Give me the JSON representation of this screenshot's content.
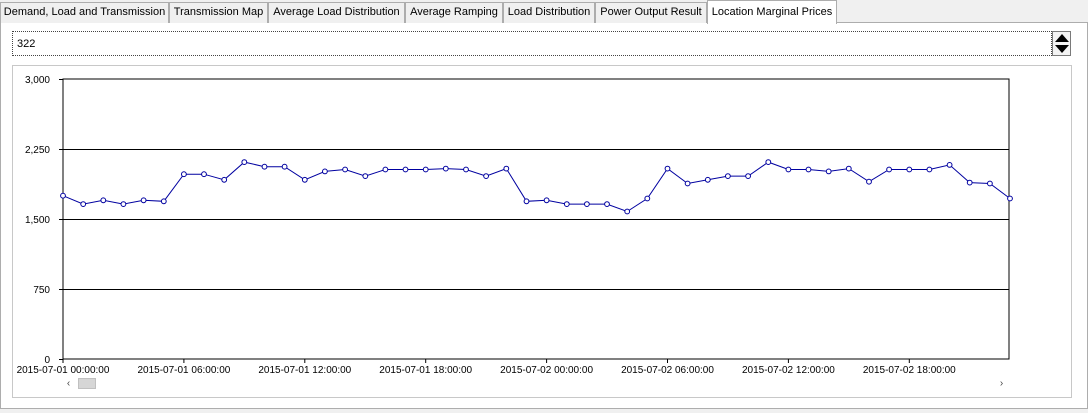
{
  "tabs": [
    {
      "label": "Demand, Load and Transmission",
      "active": false
    },
    {
      "label": "Transmission Map",
      "active": false
    },
    {
      "label": "Average Load Distribution",
      "active": false
    },
    {
      "label": "Average Ramping",
      "active": false
    },
    {
      "label": "Load Distribution",
      "active": false
    },
    {
      "label": "Power Output Result",
      "active": false
    },
    {
      "label": "Location Marginal Prices",
      "active": true
    }
  ],
  "selector": {
    "value": "322"
  },
  "scrollbar": {
    "left_arrow": "‹",
    "right_arrow": "›"
  },
  "colors": {
    "series": "#0000a0",
    "grid": "#000000"
  },
  "chart_data": {
    "type": "line",
    "title": "",
    "xlabel": "",
    "ylabel": "",
    "ylim": [
      0,
      3000
    ],
    "yticks": [
      "0",
      "750",
      "1,500",
      "2,250",
      "3,000"
    ],
    "ytick_values": [
      0,
      750,
      1500,
      2250,
      3000
    ],
    "xticks": [
      "2015-07-01 00:00:00",
      "2015-07-01 06:00:00",
      "2015-07-01 12:00:00",
      "2015-07-01 18:00:00",
      "2015-07-02 00:00:00",
      "2015-07-02 06:00:00",
      "2015-07-02 12:00:00",
      "2015-07-02 18:00:00"
    ],
    "x_start": "2015-07-01 00:00:00",
    "x_step_minutes": 60,
    "grid": "horizontal",
    "series": [
      {
        "values": [
          1750,
          1660,
          1700,
          1660,
          1700,
          1690,
          1980,
          1980,
          1920,
          2110,
          2060,
          2060,
          1920,
          2010,
          2030,
          1960,
          2030,
          2030,
          2030,
          2040,
          2030,
          1960,
          2040,
          1690,
          1700,
          1660,
          1660,
          1660,
          1580,
          1720,
          2040,
          1880,
          1920,
          1960,
          1960,
          2110,
          2030,
          2030,
          2010,
          2040,
          1900,
          2030,
          2030,
          2030,
          2080,
          1890,
          1880,
          1720
        ]
      }
    ]
  }
}
